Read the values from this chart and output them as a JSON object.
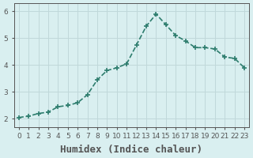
{
  "x": [
    0,
    1,
    2,
    3,
    4,
    5,
    6,
    7,
    8,
    9,
    10,
    11,
    12,
    13,
    14,
    15,
    16,
    17,
    18,
    19,
    20,
    21,
    22,
    23
  ],
  "y": [
    2.05,
    2.1,
    2.2,
    2.25,
    2.45,
    2.5,
    2.6,
    2.9,
    3.45,
    3.8,
    3.9,
    4.05,
    4.75,
    5.45,
    5.9,
    5.5,
    5.1,
    4.9,
    4.65,
    4.65,
    4.6,
    4.3,
    4.25,
    3.9
  ],
  "line_color": "#2e7d6e",
  "marker": "+",
  "marker_size": 5,
  "bg_color": "#d9eff0",
  "grid_color": "#c0d8da",
  "axis_color": "#555555",
  "xlabel": "Humidex (Indice chaleur)",
  "xlabel_fontsize": 9,
  "ylabel_ticks": [
    2,
    3,
    4,
    5,
    6
  ],
  "xlim": [
    -0.5,
    23.5
  ],
  "ylim": [
    1.7,
    6.3
  ],
  "xtick_labels": [
    "0",
    "1",
    "2",
    "3",
    "4",
    "5",
    "6",
    "7",
    "8",
    "9",
    "10",
    "11",
    "12",
    "13",
    "14",
    "15",
    "16",
    "17",
    "18",
    "19",
    "20",
    "21",
    "22",
    "23"
  ],
  "tick_fontsize": 6.5,
  "line_width": 1.2
}
